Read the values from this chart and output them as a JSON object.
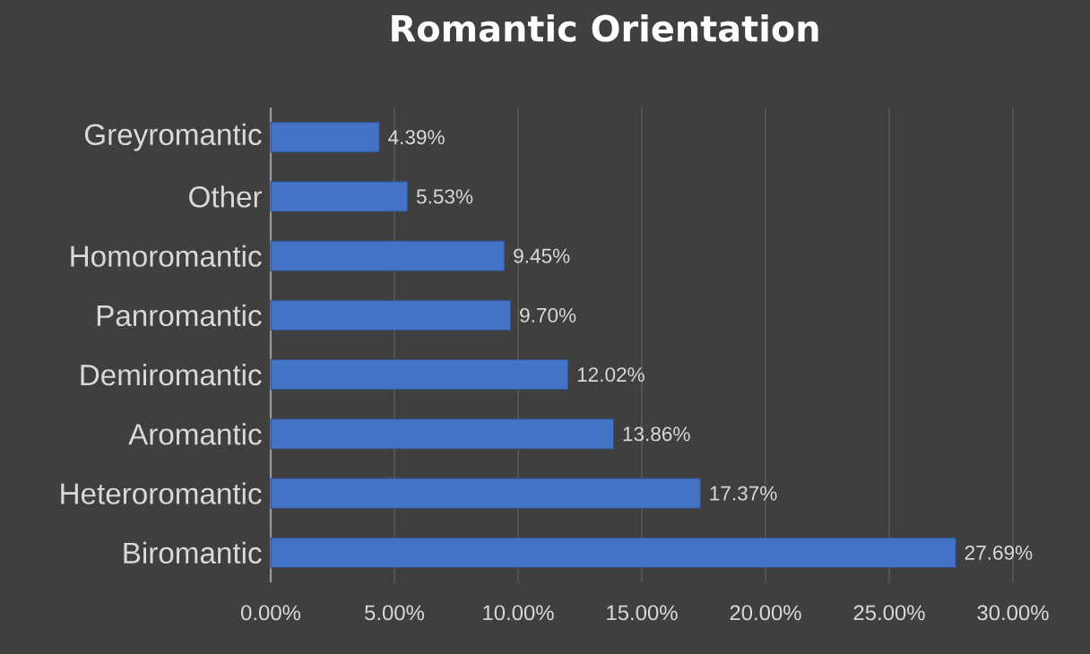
{
  "chart_data": {
    "type": "bar",
    "orientation": "horizontal",
    "title": "Romantic Orientation",
    "categories": [
      "Greyromantic",
      "Other",
      "Homoromantic",
      "Panromantic",
      "Demiromantic",
      "Aromantic",
      "Heteroromantic",
      "Biromantic"
    ],
    "values": [
      4.39,
      5.53,
      9.45,
      9.7,
      12.02,
      13.86,
      17.37,
      27.69
    ],
    "value_labels": [
      "4.39%",
      "5.53%",
      "9.45%",
      "9.70%",
      "12.02%",
      "13.86%",
      "17.37%",
      "27.69%"
    ],
    "color": "#4472c4",
    "xlim": [
      0,
      30
    ],
    "xticks": [
      {
        "value": 0,
        "label": "0.00%"
      },
      {
        "value": 5,
        "label": "5.00%"
      },
      {
        "value": 10,
        "label": "10.00%"
      },
      {
        "value": 15,
        "label": "15.00%"
      },
      {
        "value": 20,
        "label": "20.00%"
      },
      {
        "value": 25,
        "label": "25.00%"
      },
      {
        "value": 30,
        "label": "30.00%"
      }
    ],
    "grid": "x"
  }
}
